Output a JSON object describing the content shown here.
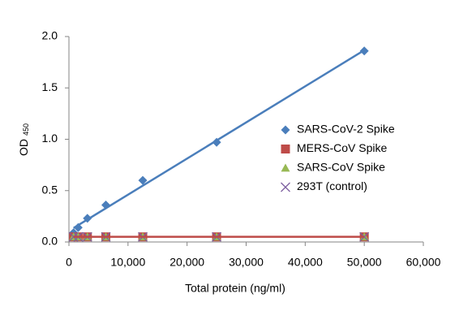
{
  "chart_data": {
    "type": "scatter",
    "x_label": "Total protein (ng/ml)",
    "y_label": "OD",
    "y_label_subscript": "450",
    "x": [
      781,
      1563,
      3125,
      6250,
      12500,
      25000,
      50000
    ],
    "series": [
      {
        "name": "SARS-CoV-2 Spike",
        "color": "#4a7ebb",
        "marker": "diamond",
        "trendline": "linear",
        "values": [
          0.09,
          0.14,
          0.23,
          0.36,
          0.6,
          0.97,
          1.86
        ]
      },
      {
        "name": "MERS-CoV Spike",
        "color": "#be4b48",
        "marker": "square",
        "trendline": "linear",
        "values": [
          0.05,
          0.05,
          0.05,
          0.05,
          0.05,
          0.05,
          0.05
        ]
      },
      {
        "name": "SARS-CoV Spike",
        "color": "#98b954",
        "marker": "triangle",
        "values": [
          0.05,
          0.05,
          0.05,
          0.05,
          0.05,
          0.05,
          0.05
        ]
      },
      {
        "name": "293T (control)",
        "color": "#7d60a0",
        "marker": "x",
        "values": [
          0.05,
          0.05,
          0.05,
          0.05,
          0.05,
          0.05,
          0.05
        ]
      }
    ],
    "xlim": [
      0,
      60000
    ],
    "xticks": [
      0,
      {
        "value": 10000,
        "label": "10,000"
      },
      {
        "value": 20000,
        "label": "20,000"
      },
      {
        "value": 30000,
        "label": "30,000"
      },
      {
        "value": 40000,
        "label": "40,000"
      },
      {
        "value": 50000,
        "label": "50,000"
      },
      {
        "value": 60000,
        "label": "60,000"
      }
    ],
    "ylim": [
      0,
      2
    ],
    "yticks": [
      {
        "value": 0,
        "label": "0.0"
      },
      {
        "value": 0.5,
        "label": "0.5"
      },
      {
        "value": 1,
        "label": "1.0"
      },
      {
        "value": 1.5,
        "label": "1.5"
      },
      {
        "value": 2,
        "label": "2.0"
      }
    ],
    "legend": "right"
  }
}
